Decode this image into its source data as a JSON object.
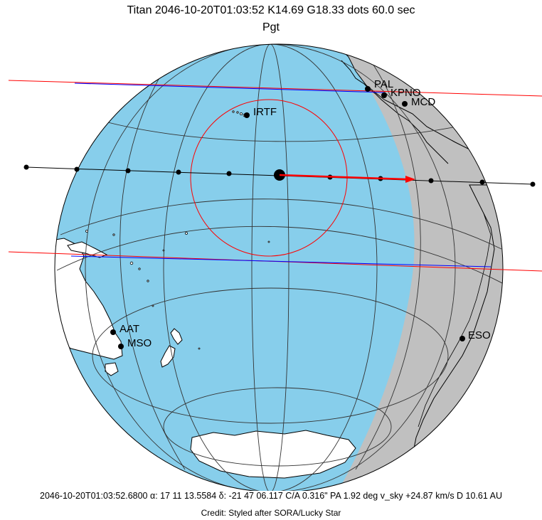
{
  "title": {
    "line1": "Titan 2046-10-20T01:03:52  K14.69  G18.33  dots  60.0 sec",
    "line2": "Pgt"
  },
  "footer": {
    "info": "2046-10-20T01:03:52.6800 α: 17 11 13.5584 δ: -21 47 06.117  C/A 0.316\"  PA   1.92 deg v_sky +24.87 km/s D 10.61 AU",
    "credit": "Credit: Styled after SORA/Lucky Star"
  },
  "observatories": [
    {
      "id": "pal",
      "label": "PAL"
    },
    {
      "id": "kpno",
      "label": "KPNO"
    },
    {
      "id": "mcd",
      "label": "MCD"
    },
    {
      "id": "irtf",
      "label": "IRTF"
    },
    {
      "id": "aat",
      "label": "AAT"
    },
    {
      "id": "mso",
      "label": "MSO"
    },
    {
      "id": "eso",
      "label": "ESO"
    }
  ],
  "colors": {
    "ocean": "#87ceeb",
    "night": "#c0c0c0",
    "land": "#ffffff",
    "graticule": "#333333",
    "limit_outer": "#ff0000",
    "limit_body": "#0000ff",
    "path": "#000000",
    "direction_arrow": "#ff0000"
  }
}
